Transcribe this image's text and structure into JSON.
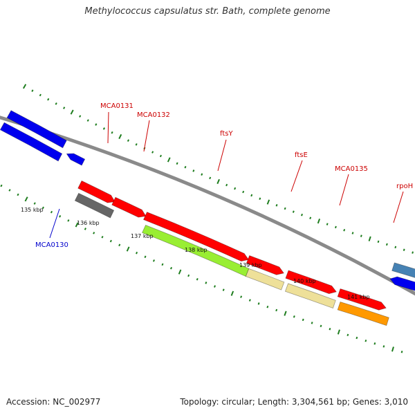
{
  "header": {
    "title": "Methylococcus capsulatus str. Bath, complete genome"
  },
  "footer": {
    "accession": "Accession: NC_002977",
    "summary": "Topology: circular; Length: 3,304,561 bp; Genes: 3,010"
  },
  "colors": {
    "backbone": "#8a8a8a",
    "tick": "#1e7d1e",
    "label_plus": "#cc0000",
    "label_minus": "#0000cc"
  },
  "scale_labels": [
    "135 kbp",
    "136 kbp",
    "137 kbp",
    "138 kbp",
    "139 kbp",
    "140 kbp",
    "141 kbp"
  ],
  "gene_labels": [
    {
      "name": "MCA0131",
      "strand": "plus"
    },
    {
      "name": "MCA0132",
      "strand": "plus"
    },
    {
      "name": "ftsY",
      "strand": "plus"
    },
    {
      "name": "ftsE",
      "strand": "plus"
    },
    {
      "name": "MCA0135",
      "strand": "plus"
    },
    {
      "name": "rpoH",
      "strand": "plus"
    },
    {
      "name": "MCA0130",
      "strand": "minus"
    }
  ],
  "features": [
    {
      "type": "cog",
      "color": "#666666",
      "gene": "MCA0131"
    },
    {
      "type": "cds",
      "color": "#ff0000",
      "gene": "MCA0131"
    },
    {
      "type": "cds",
      "color": "#ff0000",
      "gene": "MCA0132"
    },
    {
      "type": "cog",
      "color": "#99ee33",
      "gene": "ftsY"
    },
    {
      "type": "cds",
      "color": "#ff0000",
      "gene": "ftsY"
    },
    {
      "type": "cog",
      "color": "#eee099",
      "gene": "ftsE"
    },
    {
      "type": "cds",
      "color": "#ff0000",
      "gene": "ftsE"
    },
    {
      "type": "cog",
      "color": "#eee099",
      "gene": "MCA0135"
    },
    {
      "type": "cds",
      "color": "#ff0000",
      "gene": "MCA0135"
    },
    {
      "type": "cog",
      "color": "#ff9900",
      "gene": "rpoH"
    },
    {
      "type": "cds",
      "color": "#ff0000",
      "gene": "rpoH"
    },
    {
      "type": "cog",
      "color": "#0000ee",
      "gene": "MCA0130"
    },
    {
      "type": "cds",
      "color": "#0000ee",
      "gene": "MCA0130"
    },
    {
      "type": "cds",
      "color": "#0000ee",
      "gene": "MCA0130-b"
    },
    {
      "type": "cds",
      "color": "#0000ee",
      "gene": "next-minus"
    },
    {
      "type": "cog",
      "color": "#4682b4",
      "gene": "next-minus"
    }
  ]
}
